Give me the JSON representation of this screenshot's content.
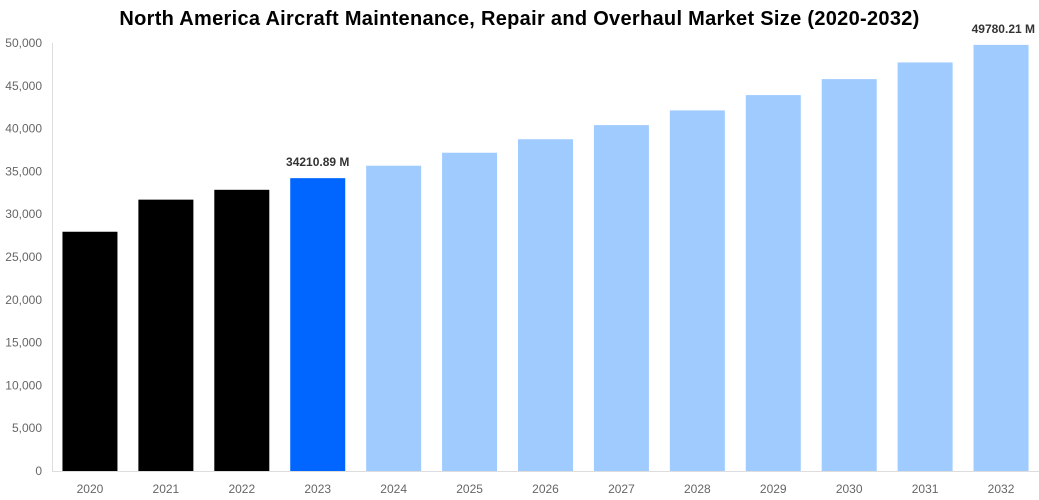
{
  "chart_data": {
    "type": "bar",
    "title": "North America Aircraft Maintenance, Repair and Overhaul Market Size (2020-2032)",
    "xlabel": "",
    "ylabel": "",
    "ylim": [
      0,
      50000
    ],
    "yticks": [
      "0",
      "5,000",
      "10,000",
      "15,000",
      "20,000",
      "25,000",
      "30,000",
      "35,000",
      "40,000",
      "45,000",
      "50,000"
    ],
    "grid": false,
    "categories": [
      "2020",
      "2021",
      "2022",
      "2023",
      "2024",
      "2025",
      "2026",
      "2027",
      "2028",
      "2029",
      "2030",
      "2031",
      "2032"
    ],
    "values": [
      27950,
      31700,
      32850,
      34210.89,
      35665,
      37181,
      38761,
      40408,
      42126,
      43916,
      45782,
      47728,
      49780.21
    ],
    "data_labels": {
      "3": "34210.89 M",
      "12": "49780.21 M"
    },
    "colors": {
      "historical": "#000000",
      "base_year": "#0066ff",
      "forecast": "#a0cbff"
    },
    "bar_color_groups": [
      "historical",
      "historical",
      "historical",
      "base_year",
      "forecast",
      "forecast",
      "forecast",
      "forecast",
      "forecast",
      "forecast",
      "forecast",
      "forecast",
      "forecast"
    ]
  }
}
